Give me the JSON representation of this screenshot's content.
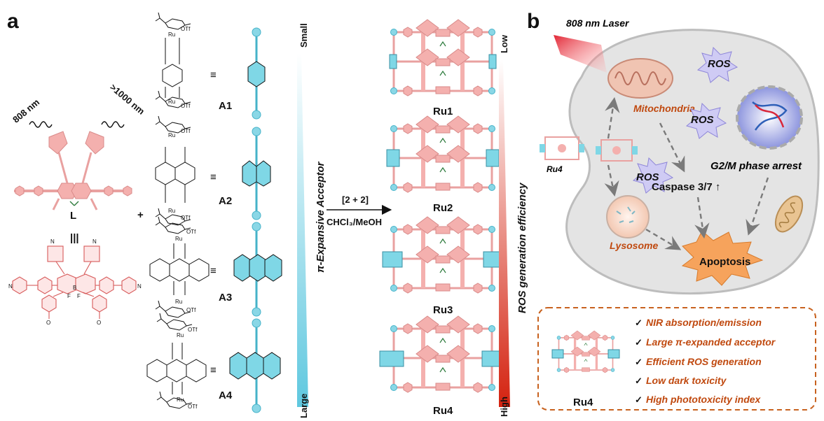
{
  "panels": {
    "a": "a",
    "b": "b"
  },
  "panel_a": {
    "ligand": {
      "label": "L",
      "wave_left": "808 nm",
      "wave_right": ">1000 nm",
      "equiv": "|||",
      "plus": "+"
    },
    "acceptors": [
      {
        "label": "A1",
        "equiv": "≡"
      },
      {
        "label": "A2",
        "equiv": "≡"
      },
      {
        "label": "A3",
        "equiv": "≡"
      },
      {
        "label": "A4",
        "equiv": "≡"
      }
    ],
    "chem_atoms": {
      "ru": "Ru",
      "otf": "OTf",
      "o": "O",
      "b": "B",
      "f": "F",
      "n": "N"
    },
    "acceptor_axis": {
      "title": "π-Expansive Acceptor",
      "top": "Small",
      "bottom": "Large"
    },
    "reaction": {
      "top": "[2 + 2]",
      "bottom": "CHCl₃/MeOH"
    },
    "products": [
      {
        "label": "Ru1"
      },
      {
        "label": "Ru2"
      },
      {
        "label": "Ru3"
      },
      {
        "label": "Ru4"
      }
    ],
    "ros_axis": {
      "title": "ROS generation efficiency",
      "top": "Low",
      "bottom": "High"
    }
  },
  "panel_b": {
    "laser": "808 nm Laser",
    "entry_label": "Ru4",
    "mitochondria": "Mitochondria",
    "lysosome": "Lysosome",
    "ros": "ROS",
    "caspase": "Caspase 3/7 ↑",
    "g2m": "G2/M phase arrest",
    "apoptosis": "Apoptosis",
    "summary": {
      "label": "Ru4",
      "check": "✓",
      "items": [
        "NIR absorption/emission",
        "Large π-expanded acceptor",
        "Efficient ROS generation",
        "Low dark toxicity",
        "High phototoxicity index"
      ]
    }
  },
  "colors": {
    "pink": "#f4b0ae",
    "pink_dark": "#e48b8a",
    "cyan": "#7fd7e6",
    "cyan_dark": "#3fb8d0",
    "ros_burst": "#cfcbf4",
    "apoptosis_burst": "#f6a35c",
    "orange_text": "#c0490f",
    "dash_box": "#c8621f",
    "cell_fill": "#e4e4e4"
  }
}
